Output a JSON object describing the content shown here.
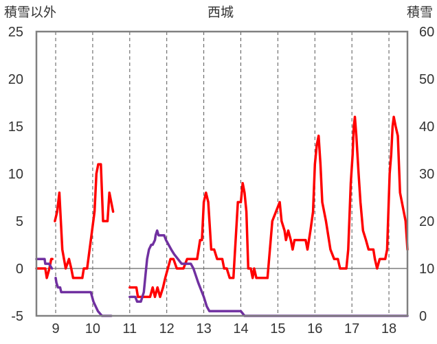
{
  "chart_data": {
    "type": "line",
    "title": "西城",
    "left_axis": {
      "label": "積雪以外",
      "range": [
        -5,
        25
      ],
      "ticks": [
        -5,
        0,
        5,
        10,
        15,
        20,
        25
      ]
    },
    "right_axis": {
      "label": "積雪",
      "range": [
        0,
        60
      ],
      "ticks": [
        0,
        10,
        20,
        30,
        40,
        50,
        60
      ]
    },
    "x_axis": {
      "range": [
        8.48,
        18.5
      ],
      "ticks": [
        9,
        10,
        11,
        12,
        13,
        14,
        15,
        16,
        17,
        18
      ]
    },
    "grid": true,
    "colors": {
      "left_series": "#ff0000",
      "right_series": "#7030a0",
      "frame": "#808080"
    },
    "series": [
      {
        "axis": "left",
        "segments": [
          [
            [
              8.48,
              0
            ],
            [
              8.72,
              0
            ],
            [
              8.76,
              -1
            ],
            [
              8.83,
              0
            ],
            [
              8.88,
              1
            ],
            [
              8.91,
              1
            ]
          ],
          [
            [
              8.98,
              5
            ],
            [
              9.04,
              6
            ],
            [
              9.1,
              8
            ],
            [
              9.18,
              2
            ],
            [
              9.27,
              0
            ],
            [
              9.36,
              1
            ],
            [
              9.42,
              0
            ],
            [
              9.47,
              -1
            ],
            [
              9.6,
              -1
            ],
            [
              9.72,
              -1
            ],
            [
              9.76,
              0
            ],
            [
              9.85,
              0
            ],
            [
              9.95,
              3
            ],
            [
              10.05,
              6
            ],
            [
              10.1,
              10
            ],
            [
              10.15,
              11
            ],
            [
              10.22,
              11
            ],
            [
              10.28,
              5
            ],
            [
              10.4,
              5
            ],
            [
              10.45,
              8
            ],
            [
              10.5,
              7
            ],
            [
              10.55,
              6
            ]
          ],
          [
            [
              11.0,
              -2
            ],
            [
              11.18,
              -2
            ],
            [
              11.22,
              -3
            ],
            [
              11.28,
              -3
            ],
            [
              11.45,
              -3
            ],
            [
              11.55,
              -3
            ],
            [
              11.62,
              -2
            ],
            [
              11.68,
              -3
            ],
            [
              11.75,
              -2
            ],
            [
              11.82,
              -3
            ],
            [
              11.9,
              -2
            ],
            [
              11.96,
              -1
            ],
            [
              12.03,
              0
            ],
            [
              12.1,
              1
            ],
            [
              12.18,
              1
            ],
            [
              12.27,
              0
            ],
            [
              12.45,
              0
            ],
            [
              12.55,
              1
            ],
            [
              12.7,
              1
            ],
            [
              12.82,
              1
            ],
            [
              12.9,
              3
            ],
            [
              12.95,
              3
            ],
            [
              13.0,
              7
            ],
            [
              13.06,
              8
            ],
            [
              13.12,
              7
            ],
            [
              13.2,
              2
            ],
            [
              13.28,
              2
            ],
            [
              13.36,
              1
            ],
            [
              13.42,
              1
            ],
            [
              13.5,
              1
            ],
            [
              13.55,
              0
            ],
            [
              13.62,
              0
            ],
            [
              13.7,
              -1
            ],
            [
              13.8,
              -1
            ],
            [
              13.92,
              7
            ],
            [
              14.0,
              7
            ],
            [
              14.05,
              9
            ],
            [
              14.1,
              8
            ],
            [
              14.15,
              6
            ],
            [
              14.2,
              0
            ],
            [
              14.27,
              0
            ],
            [
              14.32,
              -1
            ],
            [
              14.36,
              0
            ],
            [
              14.42,
              -1
            ],
            [
              14.58,
              -1
            ],
            [
              14.72,
              -1
            ],
            [
              14.85,
              5
            ],
            [
              14.95,
              6
            ],
            [
              15.05,
              7
            ],
            [
              15.1,
              5
            ],
            [
              15.18,
              4
            ],
            [
              15.22,
              3
            ],
            [
              15.28,
              4
            ],
            [
              15.35,
              3
            ],
            [
              15.4,
              2
            ],
            [
              15.45,
              3
            ],
            [
              15.5,
              3
            ],
            [
              15.6,
              3
            ],
            [
              15.75,
              3
            ],
            [
              15.8,
              2
            ],
            [
              15.88,
              4
            ],
            [
              15.95,
              6
            ],
            [
              16.0,
              11
            ],
            [
              16.05,
              13
            ],
            [
              16.1,
              14
            ],
            [
              16.15,
              11
            ],
            [
              16.2,
              7
            ],
            [
              16.3,
              5
            ],
            [
              16.42,
              2
            ],
            [
              16.52,
              1
            ],
            [
              16.62,
              1
            ],
            [
              16.68,
              0
            ],
            [
              16.8,
              0
            ],
            [
              16.85,
              0
            ],
            [
              16.9,
              2
            ],
            [
              16.97,
              9
            ],
            [
              17.02,
              12
            ],
            [
              17.05,
              15
            ],
            [
              17.08,
              16
            ],
            [
              17.12,
              14
            ],
            [
              17.18,
              10
            ],
            [
              17.23,
              7
            ],
            [
              17.3,
              4
            ],
            [
              17.38,
              3
            ],
            [
              17.45,
              2
            ],
            [
              17.58,
              2
            ],
            [
              17.62,
              1
            ],
            [
              17.68,
              0
            ],
            [
              17.75,
              1
            ],
            [
              17.9,
              1
            ],
            [
              17.95,
              2
            ],
            [
              18.02,
              10
            ],
            [
              18.06,
              12
            ],
            [
              18.1,
              15
            ],
            [
              18.13,
              16
            ],
            [
              18.18,
              15
            ],
            [
              18.24,
              14
            ],
            [
              18.3,
              8
            ],
            [
              18.4,
              6
            ],
            [
              18.45,
              5
            ],
            [
              18.5,
              2
            ]
          ]
        ]
      },
      {
        "axis": "right",
        "segments": [
          [
            [
              8.48,
              12
            ],
            [
              8.7,
              12
            ],
            [
              8.72,
              11
            ],
            [
              8.82,
              11
            ],
            [
              8.9,
              10
            ]
          ],
          [
            [
              9.0,
              8
            ],
            [
              9.02,
              7
            ],
            [
              9.06,
              6
            ],
            [
              9.12,
              6
            ],
            [
              9.15,
              5
            ],
            [
              9.22,
              5
            ],
            [
              9.26,
              5
            ],
            [
              9.5,
              5
            ],
            [
              9.75,
              5
            ],
            [
              9.95,
              5
            ],
            [
              10.02,
              3
            ],
            [
              10.08,
              2
            ],
            [
              10.14,
              1
            ],
            [
              10.25,
              0
            ],
            [
              10.5,
              0
            ]
          ],
          [
            [
              11.0,
              4
            ],
            [
              11.15,
              4
            ],
            [
              11.2,
              3
            ],
            [
              11.3,
              3
            ],
            [
              11.38,
              5
            ],
            [
              11.43,
              9
            ],
            [
              11.47,
              12
            ],
            [
              11.52,
              14
            ],
            [
              11.58,
              15
            ],
            [
              11.62,
              15
            ],
            [
              11.68,
              16
            ],
            [
              11.7,
              17
            ],
            [
              11.74,
              18
            ],
            [
              11.78,
              17
            ],
            [
              11.85,
              17
            ],
            [
              11.93,
              17
            ],
            [
              11.98,
              16
            ],
            [
              12.05,
              15
            ],
            [
              12.12,
              14
            ],
            [
              12.2,
              13
            ],
            [
              12.3,
              12
            ],
            [
              12.4,
              11
            ],
            [
              12.55,
              11
            ],
            [
              12.65,
              11
            ],
            [
              12.72,
              10
            ],
            [
              12.85,
              7
            ],
            [
              12.95,
              5
            ],
            [
              13.0,
              4
            ],
            [
              13.08,
              2
            ],
            [
              13.15,
              1
            ],
            [
              13.3,
              1
            ],
            [
              13.6,
              1
            ],
            [
              14.0,
              1
            ],
            [
              14.1,
              0
            ],
            [
              18.5,
              0
            ]
          ]
        ]
      }
    ]
  }
}
